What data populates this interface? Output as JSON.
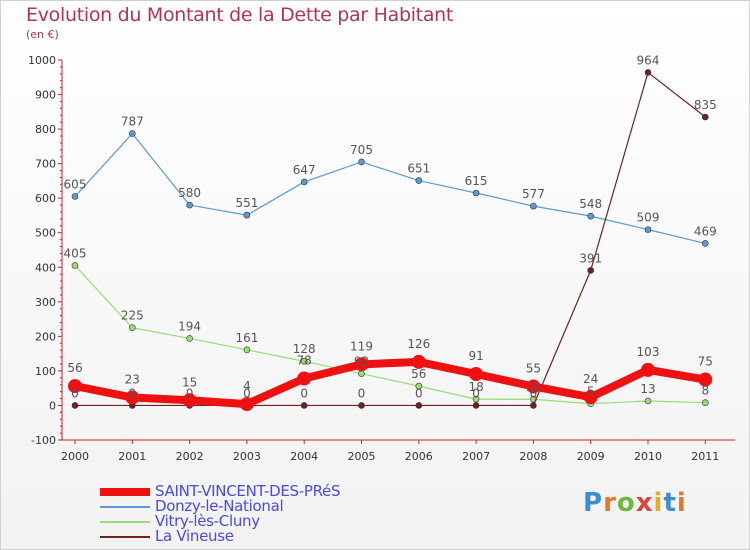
{
  "header": {
    "title": "Evolution du Montant de la Dette par Habitant",
    "subtitle": "(en €)"
  },
  "logo": {
    "text": "Proxiti",
    "letters": [
      "P",
      "r",
      "o",
      "x",
      "i",
      "t",
      "i"
    ],
    "colors": [
      "#3a8fd0",
      "#e07a2a",
      "#6bb83a",
      "#d64a3a",
      "#e0b020",
      "#3a8fd0",
      "#e07a2a"
    ]
  },
  "chart_data": {
    "type": "line",
    "x": [
      "2000",
      "2001",
      "2002",
      "2003",
      "2004",
      "2005",
      "2006",
      "2007",
      "2008",
      "2009",
      "2010",
      "2011"
    ],
    "ylim": [
      -100,
      1000
    ],
    "yticks": [
      "-100",
      "0",
      "100",
      "200",
      "300",
      "400",
      "500",
      "600",
      "700",
      "800",
      "900",
      "1000"
    ],
    "grid": false,
    "legend_position": "bottom-left",
    "series": [
      {
        "name": "SAINT-VINCENT-DES-PRéS",
        "color": "#ee1111",
        "values": [
          56,
          23,
          15,
          4,
          78,
          119,
          126,
          91,
          55,
          24,
          103,
          75
        ],
        "labels": [
          "56",
          "23",
          "15",
          "4",
          "78",
          "119",
          "126",
          "91",
          "55",
          "24",
          "103",
          "75"
        ]
      },
      {
        "name": "Donzy-le-National",
        "color": "#5c9bd1",
        "values": [
          605,
          787,
          580,
          551,
          647,
          705,
          651,
          615,
          577,
          548,
          509,
          469
        ],
        "labels": [
          "605",
          "787",
          "580",
          "551",
          "647",
          "705",
          "651",
          "615",
          "577",
          "548",
          "509",
          "469"
        ]
      },
      {
        "name": "Vitry-lès-Cluny",
        "color": "#99dd77",
        "values": [
          405,
          225,
          194,
          161,
          128,
          92,
          56,
          18,
          18,
          5,
          13,
          8
        ],
        "labels": [
          "405",
          "225",
          "194",
          "161",
          "128",
          "92",
          "56",
          "18",
          "18",
          "5",
          "13",
          "8"
        ]
      },
      {
        "name": "La Vineuse",
        "color": "#6b2222",
        "values": [
          0,
          0,
          0,
          0,
          0,
          0,
          0,
          0,
          0,
          391,
          964,
          835
        ],
        "labels": [
          "0",
          "0",
          "0",
          "0",
          "0",
          "0",
          "0",
          "0",
          "0",
          "391",
          "964",
          "835"
        ]
      }
    ]
  }
}
